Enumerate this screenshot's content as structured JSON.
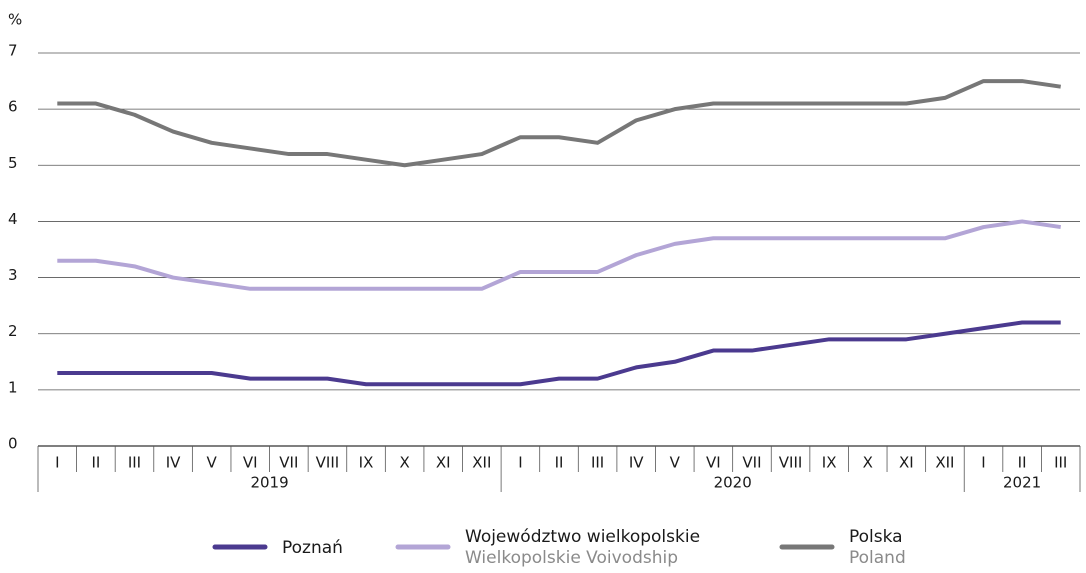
{
  "chart_data": {
    "type": "line",
    "y_label": "%",
    "category_groups": [
      {
        "label": "2019",
        "categories": [
          "I",
          "II",
          "III",
          "IV",
          "V",
          "VI",
          "VII",
          "VIII",
          "IX",
          "X",
          "XI",
          "XII"
        ]
      },
      {
        "label": "2020",
        "categories": [
          "I",
          "II",
          "III",
          "IV",
          "V",
          "VI",
          "VII",
          "VIII",
          "IX",
          "X",
          "XI",
          "XII"
        ]
      },
      {
        "label": "2021",
        "categories": [
          "I",
          "II",
          "III"
        ]
      }
    ],
    "series": [
      {
        "name": "Poznań",
        "color": "#4b3a8f",
        "values": [
          1.3,
          1.3,
          1.3,
          1.3,
          1.3,
          1.2,
          1.2,
          1.2,
          1.1,
          1.1,
          1.1,
          1.1,
          1.1,
          1.2,
          1.2,
          1.4,
          1.5,
          1.7,
          1.7,
          1.8,
          1.9,
          1.9,
          1.9,
          2.0,
          2.1,
          2.2,
          2.2
        ]
      },
      {
        "name": "Województwo wielkopolskie",
        "name_en": "Wielkopolskie Voivodship",
        "color": "#b3a5d6",
        "values": [
          3.3,
          3.3,
          3.2,
          3.0,
          2.9,
          2.8,
          2.8,
          2.8,
          2.8,
          2.8,
          2.8,
          2.8,
          3.1,
          3.1,
          3.1,
          3.4,
          3.6,
          3.7,
          3.7,
          3.7,
          3.7,
          3.7,
          3.7,
          3.7,
          3.9,
          4.0,
          3.9
        ]
      },
      {
        "name": "Polska",
        "name_en": "Poland",
        "color": "#777777",
        "values": [
          6.1,
          6.1,
          5.9,
          5.6,
          5.4,
          5.3,
          5.2,
          5.2,
          5.1,
          5.0,
          5.1,
          5.2,
          5.5,
          5.5,
          5.4,
          5.8,
          6.0,
          6.1,
          6.1,
          6.1,
          6.1,
          6.1,
          6.1,
          6.2,
          6.5,
          6.5,
          6.4
        ]
      }
    ],
    "ylim": [
      0,
      7
    ],
    "yticks": [
      0,
      1,
      2,
      3,
      4,
      5,
      6,
      7
    ],
    "grid": true,
    "legend": "bottom"
  }
}
